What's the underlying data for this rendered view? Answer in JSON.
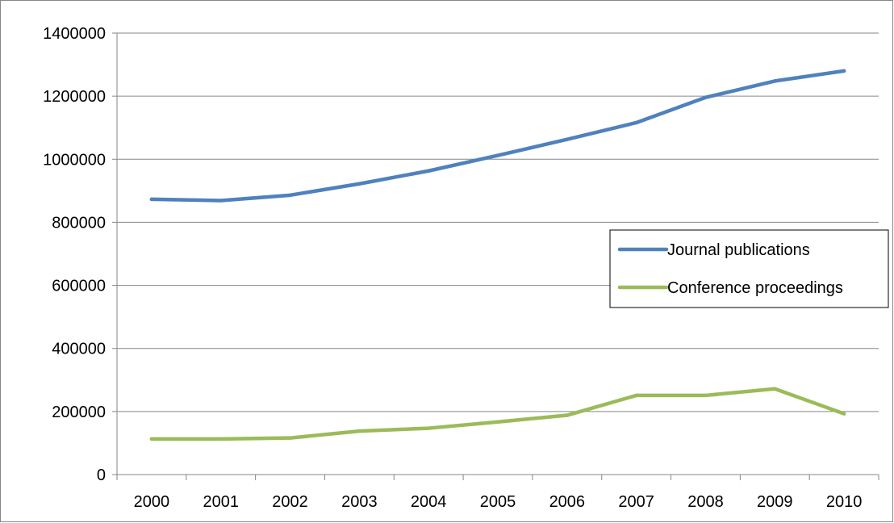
{
  "chart_data": {
    "type": "line",
    "title": "",
    "xlabel": "",
    "ylabel": "",
    "categories": [
      "2000",
      "2001",
      "2002",
      "2003",
      "2004",
      "2005",
      "2006",
      "2007",
      "2008",
      "2009",
      "2010"
    ],
    "series": [
      {
        "name": "Journal publications",
        "color": "#4f81bd",
        "values": [
          873000,
          869000,
          886000,
          922000,
          963000,
          1012000,
          1063000,
          1116000,
          1196000,
          1248000,
          1280000
        ]
      },
      {
        "name": "Conference proceedings",
        "color": "#9bbb59",
        "values": [
          113000,
          113000,
          116000,
          138000,
          147000,
          167000,
          188000,
          251000,
          251000,
          272000,
          193000
        ]
      }
    ],
    "ylim": [
      0,
      1400000
    ],
    "yticks": [
      "0",
      "200000",
      "400000",
      "600000",
      "800000",
      "1000000",
      "1200000",
      "1400000"
    ],
    "grid": "horizontal",
    "legend_position": "right",
    "colors": {
      "gridline": "#868686",
      "axis": "#868686",
      "border": "#868686",
      "legend_border": "#000000"
    }
  }
}
